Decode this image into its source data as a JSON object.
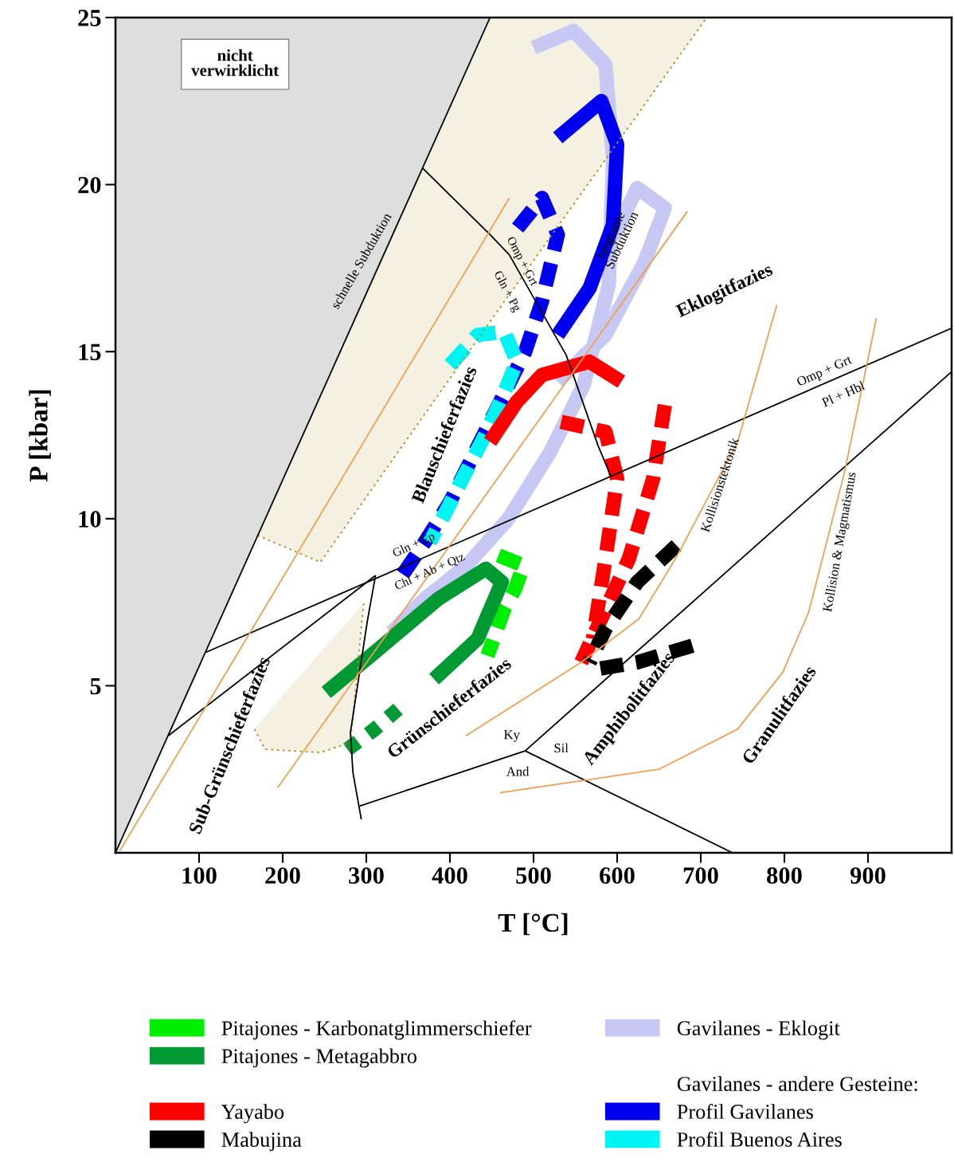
{
  "chart_data": {
    "type": "line",
    "xlabel": "T [°C]",
    "ylabel": "P [kbar]",
    "xlim": [
      0,
      1000
    ],
    "ylim": [
      0,
      25
    ],
    "xticks": [
      100,
      200,
      300,
      400,
      500,
      600,
      700,
      800,
      900
    ],
    "yticks": [
      5,
      10,
      15,
      20,
      25
    ],
    "grid": false,
    "legend": "bottom",
    "series": [
      {
        "color": "#b09020",
        "line_style": "dotted",
        "x": [
          170,
          245,
          448,
          707
        ],
        "values": [
          9.5,
          8.7,
          15.9,
          25
        ],
        "lower": [
          9.5,
          8.7,
          15.9,
          25
        ],
        "upper": [
          9.5,
          13.7,
          25,
          25
        ]
      },
      {
        "color": "#b09020",
        "line_style": "dotted",
        "x": [
          166,
          179,
          245,
          281,
          297
        ],
        "values": [
          3.7,
          3.1,
          3.0,
          3.3,
          7.5
        ],
        "lower": [
          3.7,
          3.1,
          3.0,
          3.3,
          7.5
        ],
        "upper": [
          3.7,
          4.1,
          6.0,
          7.0,
          7.5
        ]
      },
      {
        "color": "#000000",
        "x": [
          0,
          448
        ],
        "values": [
          0,
          25
        ],
        "lower": [
          0,
          25
        ],
        "upper": [
          25,
          25
        ]
      },
      {
        "color": "#000000",
        "x": [
          108,
          1000
        ],
        "values": [
          6.0,
          15.7
        ]
      },
      {
        "color": "#000000",
        "x": [
          63,
          311
        ],
        "values": [
          3.5,
          8.3
        ]
      },
      {
        "color": "#000000",
        "x": [
          311,
          301,
          281,
          284,
          294
        ],
        "values": [
          8.3,
          6.9,
          3.6,
          2.4,
          1.0
        ]
      },
      {
        "color": "#000000",
        "x": [
          292,
          490,
          1000
        ],
        "values": [
          1.4,
          3.05,
          14.4
        ]
      },
      {
        "color": "#000000",
        "x": [
          490,
          738
        ],
        "values": [
          3.05,
          0
        ]
      },
      {
        "color": "#000000",
        "x": [
          367,
          448,
          471,
          539,
          577,
          592
        ],
        "values": [
          20.5,
          18.5,
          17.9,
          14.9,
          12.2,
          11.3
        ]
      },
      {
        "color": "#f0a050",
        "x": [
          5,
          471
        ],
        "values": [
          0.05,
          19.6
        ]
      },
      {
        "color": "#f0a050",
        "x": [
          194,
          684
        ],
        "values": [
          1.95,
          19.2
        ]
      },
      {
        "color": "#f0a050",
        "x": [
          419,
          557,
          626,
          672,
          744,
          791
        ],
        "values": [
          3.5,
          5.7,
          7.0,
          8.9,
          12.3,
          16.4
        ]
      },
      {
        "color": "#f0a050",
        "x": [
          460,
          650,
          744,
          798,
          829,
          872,
          910
        ],
        "values": [
          1.8,
          2.5,
          3.7,
          5.4,
          7.2,
          11.4,
          16.0
        ]
      },
      {
        "name": "Gavilanes - Eklogit",
        "color": "#c8c8f4",
        "line_style": "solid",
        "x": [
          500,
          548,
          586,
          595,
          590,
          560,
          520,
          470,
          420,
          370,
          330
        ],
        "values": [
          24.1,
          24.6,
          23.6,
          20.8,
          17.0,
          14.0,
          12.0,
          10.0,
          8.6,
          7.6,
          6.6
        ]
      },
      {
        "color": "#c8c8f4",
        "line_style": "solid",
        "x": [
          595,
          624,
          657,
          633,
          586,
          529
        ],
        "values": [
          18.4,
          19.9,
          19.3,
          17.7,
          15.5,
          14.1
        ]
      },
      {
        "name": "Profil Gavilanes",
        "color": "#0000f0",
        "line_style": "solid",
        "x": [
          529,
          581,
          600,
          595,
          567,
          529
        ],
        "values": [
          21.4,
          22.5,
          21.2,
          18.8,
          16.9,
          15.5
        ]
      },
      {
        "color": "#0000f0",
        "line_style": "dashed",
        "x": [
          481,
          510,
          529,
          510,
          490,
          460,
          430,
          400,
          370,
          340
        ],
        "values": [
          18.7,
          19.6,
          18.5,
          16.5,
          15.0,
          13.5,
          12.0,
          10.5,
          9.3,
          8.2
        ]
      },
      {
        "name": "Profil Buenos Aires",
        "color": "#00f4f4",
        "line_style": "dashed",
        "x": [
          400,
          433,
          465,
          480,
          462,
          440,
          415,
          395,
          376
        ],
        "values": [
          14.6,
          15.5,
          15.6,
          14.7,
          13.6,
          12.4,
          11.2,
          10.2,
          9.3
        ]
      },
      {
        "name": "Yayabo",
        "color": "#ff0000",
        "line_style": "solid",
        "x": [
          448,
          480,
          510,
          567,
          605
        ],
        "values": [
          12.3,
          13.5,
          14.3,
          14.7,
          14.1
        ]
      },
      {
        "color": "#ff0000",
        "line_style": "dashed",
        "x": [
          533,
          586,
          600,
          586,
          571
        ],
        "values": [
          12.9,
          12.6,
          11.2,
          8.8,
          6.4
        ]
      },
      {
        "color": "#ff0000",
        "line_style": "dashed",
        "x": [
          657,
          643,
          614,
          557
        ],
        "values": [
          13.4,
          11.2,
          8.8,
          5.7
        ]
      },
      {
        "name": "Mabujina",
        "color": "#000000",
        "line_style": "dashed",
        "x": [
          671,
          624,
          586,
          567
        ],
        "values": [
          9.2,
          8.1,
          6.7,
          5.7
        ]
      },
      {
        "color": "#000000",
        "line_style": "dashed",
        "x": [
          690,
          624,
          576
        ],
        "values": [
          6.2,
          5.7,
          5.5
        ]
      },
      {
        "name": "Pitajones - Karbonatglimmerschiefer",
        "color": "#00ee00",
        "line_style": "dashed",
        "x": [
          458,
          488,
          478,
          465,
          445
        ],
        "values": [
          8.9,
          8.6,
          7.9,
          7.3,
          5.9
        ]
      },
      {
        "name": "Pitajones - Metagabbro",
        "color": "#009933",
        "line_style": "solid",
        "x": [
          252,
          310,
          386,
          443,
          462,
          433,
          381
        ],
        "values": [
          4.8,
          6.0,
          7.6,
          8.5,
          8.1,
          6.4,
          5.2
        ]
      },
      {
        "color": "#009933",
        "line_style": "dotted",
        "x": [
          338,
          310,
          267
        ],
        "values": [
          4.3,
          3.7,
          2.9
        ]
      }
    ],
    "annotations": [
      "nicht\nverwirklicht",
      "schnelle Subduktion",
      "Blauschieferfazies",
      "Omp + Grt",
      "Gln + Pg",
      "langsame\nSubduktion",
      "Eklogitfazies",
      "Omp + Grt",
      "Pl + Hbl",
      "Kollisionstektonik",
      "Kollision & Magmatismus",
      "Gln + Ep",
      "Chl + Ab + Qtz",
      "Sub-Grünschieferfazies",
      "Grünschieferfazies",
      "Ky",
      "Sil",
      "And",
      "Amphibolitfazies",
      "Granulitfazies",
      "Gavilanes - andere Gesteine:"
    ]
  }
}
